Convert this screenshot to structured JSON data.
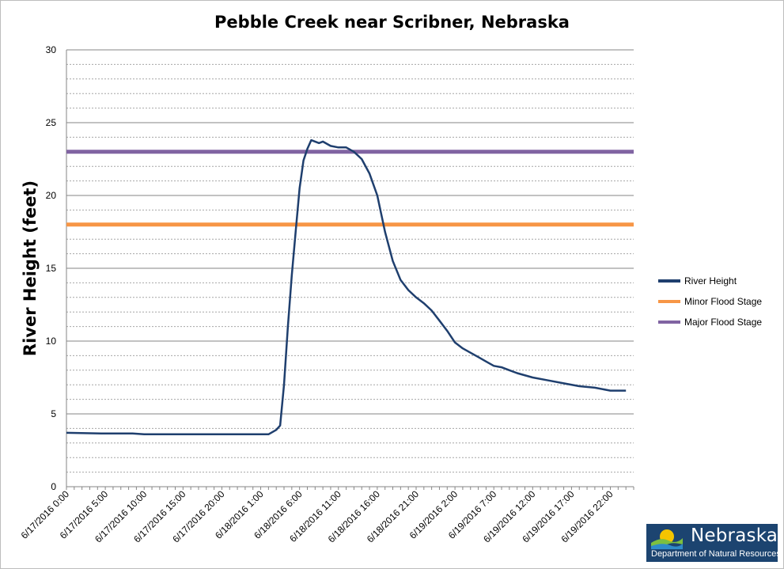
{
  "chart_data": {
    "type": "line",
    "title": "Pebble Creek near Scribner, Nebraska",
    "ylabel": "River Height (feet)",
    "xlabel": "",
    "ylim": [
      0,
      30
    ],
    "yticks": [
      0,
      5,
      10,
      15,
      20,
      25,
      30
    ],
    "ytick_labels": [
      "0",
      "5",
      "10",
      "15",
      "20",
      "25",
      "30"
    ],
    "y_grid": "major and minor",
    "xticks": [
      "6/17/2016 0:00",
      "6/17/2016 5:00",
      "6/17/2016 10:00",
      "6/17/2016 15:00",
      "6/17/2016 20:00",
      "6/18/2016 1:00",
      "6/18/2016 6:00",
      "6/18/2016 11:00",
      "6/18/2016 16:00",
      "6/18/2016 21:00",
      "6/19/2016 2:00",
      "6/19/2016 7:00",
      "6/19/2016 12:00",
      "6/19/2016 17:00",
      "6/19/2016 22:00"
    ],
    "legend_position": "right",
    "series": [
      {
        "name": "River Height",
        "color": "#1f3f6e",
        "x_hours": [
          0,
          5,
          8.5,
          10,
          15,
          20,
          25,
          26,
          27,
          27.5,
          28,
          28.5,
          29,
          29.5,
          30,
          30.5,
          31,
          31.5,
          32,
          32.5,
          33,
          34,
          35,
          36,
          37,
          38,
          39,
          40,
          41,
          42,
          43,
          44,
          45,
          46,
          47,
          48,
          49,
          50,
          51,
          52,
          53,
          54,
          55,
          56,
          57,
          58,
          60,
          62,
          64,
          66,
          68,
          70,
          72
        ],
        "y": [
          3.7,
          3.65,
          3.65,
          3.6,
          3.6,
          3.6,
          3.6,
          3.6,
          3.9,
          4.2,
          7.0,
          11.0,
          14.5,
          17.5,
          20.5,
          22.4,
          23.2,
          23.8,
          23.7,
          23.6,
          23.7,
          23.4,
          23.3,
          23.3,
          23.0,
          22.5,
          21.5,
          20.0,
          17.5,
          15.5,
          14.2,
          13.5,
          13.0,
          12.6,
          12.1,
          11.4,
          10.7,
          9.9,
          9.5,
          9.2,
          8.9,
          8.6,
          8.3,
          8.2,
          8.0,
          7.8,
          7.5,
          7.3,
          7.1,
          6.9,
          6.8,
          6.6,
          6.6
        ]
      },
      {
        "name": "Minor Flood Stage",
        "color": "#f79646",
        "constant": 18
      },
      {
        "name": "Major Flood Stage",
        "color": "#8064a2",
        "constant": 23
      }
    ]
  },
  "logo": {
    "name": "Nebraska",
    "subtitle": "Department of Natural Resources"
  }
}
